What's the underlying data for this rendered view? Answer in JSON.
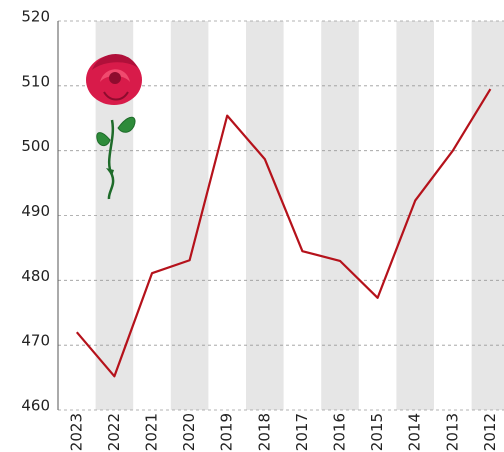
{
  "chart_data": {
    "type": "line",
    "categories": [
      "2023",
      "2022",
      "2021",
      "2020",
      "2019",
      "2018",
      "2017",
      "2016",
      "2015",
      "2014",
      "2013",
      "2012"
    ],
    "values": [
      472.0,
      465.2,
      481.1,
      483.1,
      505.4,
      498.7,
      484.5,
      483.0,
      477.3,
      492.3,
      500.0,
      509.5
    ],
    "color": "#b5121b",
    "ylim": [
      460,
      520
    ],
    "yticks": [
      460,
      470,
      480,
      490,
      500,
      510,
      520
    ],
    "grid": true
  }
}
